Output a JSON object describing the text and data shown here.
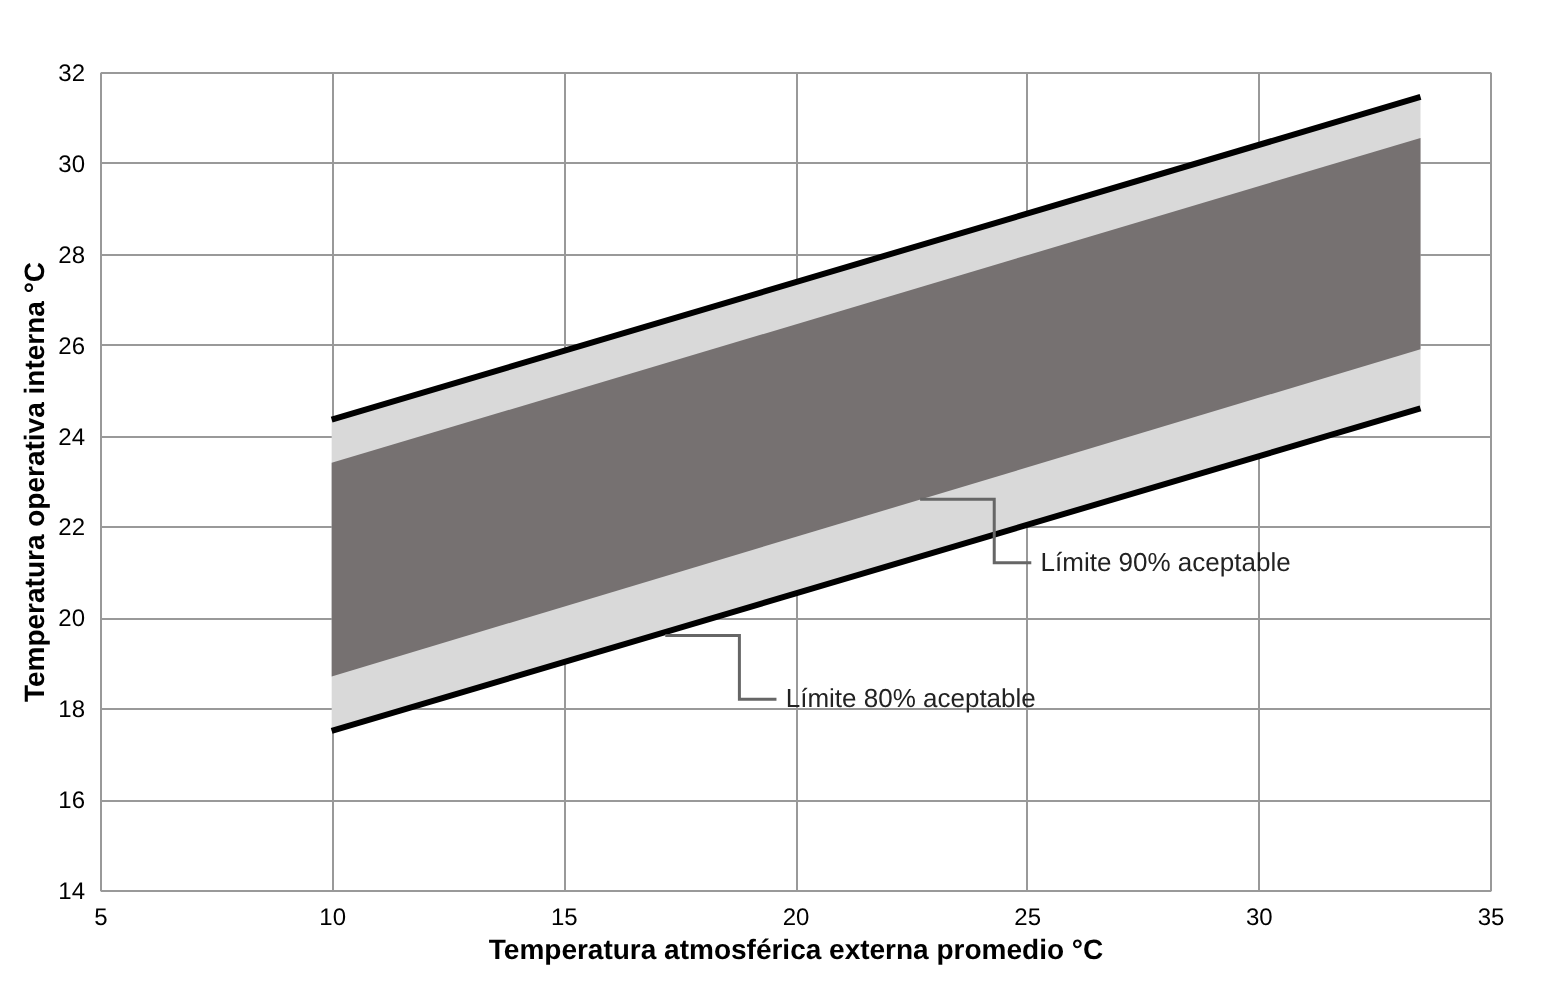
{
  "chart_data": {
    "type": "line",
    "xlabel": "Temperatura  atmosférica externa promedio  °C",
    "ylabel": "Temperatura  operativa interna  °C",
    "x": [
      10,
      33.5
    ],
    "series": [
      {
        "color": "#d9d9d9",
        "values": [
          null,
          null
        ],
        "lower": [
          17.5,
          24.6
        ],
        "upper": [
          24.35,
          31.45
        ]
      },
      {
        "color": "#767171",
        "values": [
          null,
          null
        ],
        "lower": [
          18.7,
          25.9
        ],
        "upper": [
          23.4,
          30.55
        ]
      },
      {
        "color": "#000000",
        "values": [
          24.35,
          31.45
        ]
      },
      {
        "color": "#000000",
        "values": [
          17.5,
          24.6
        ]
      }
    ],
    "annotations": [
      {
        "text": "Límite 90% aceptable",
        "x": 22.7,
        "y": 22.6
      },
      {
        "text": "Límite 80% aceptable",
        "x": 17.2,
        "y": 19.6
      }
    ],
    "xlim": [
      5,
      35
    ],
    "xticks": [
      5,
      10,
      15,
      20,
      25,
      30,
      35
    ],
    "ylim": [
      14,
      32
    ],
    "yticks": [
      14,
      16,
      18,
      20,
      22,
      24,
      26,
      28,
      30,
      32
    ],
    "grid": true
  }
}
